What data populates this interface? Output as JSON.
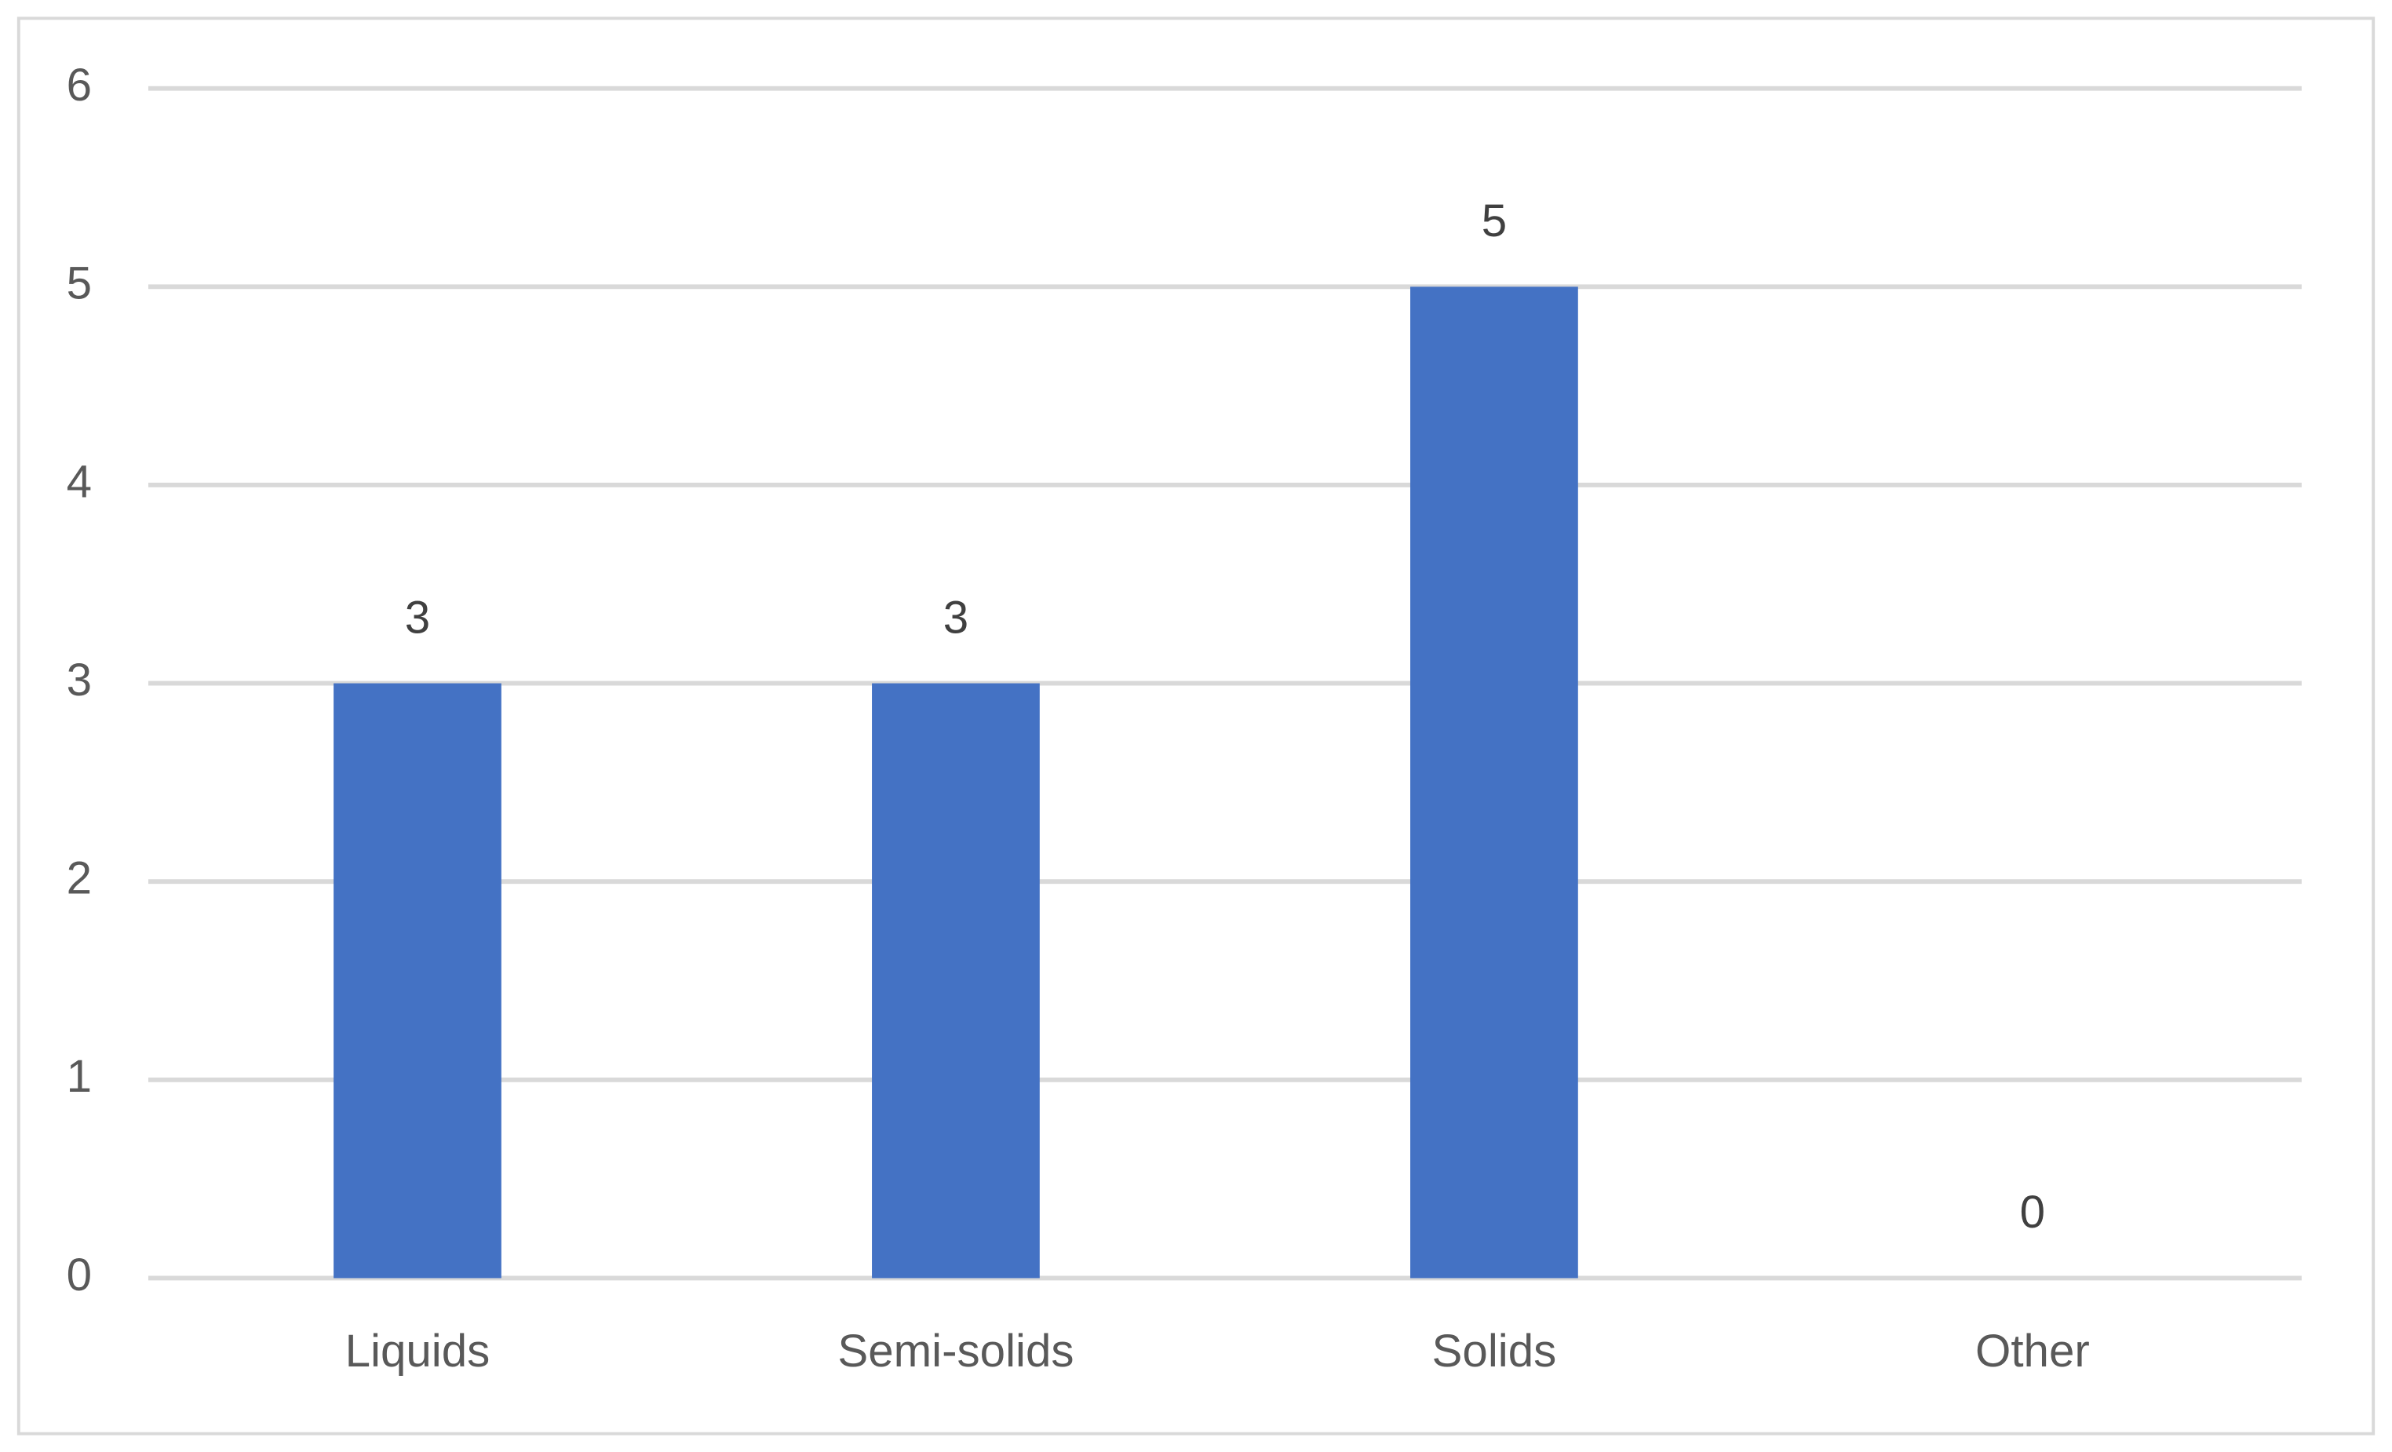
{
  "chart_data": {
    "type": "bar",
    "categories": [
      "Liquids",
      "Semi-solids",
      "Solids",
      "Other"
    ],
    "values": [
      3,
      3,
      5,
      0
    ],
    "color": "#4472c4",
    "ylim": [
      0,
      6
    ],
    "yticks": [
      0,
      1,
      2,
      3,
      4,
      5,
      6
    ],
    "grid": true
  }
}
